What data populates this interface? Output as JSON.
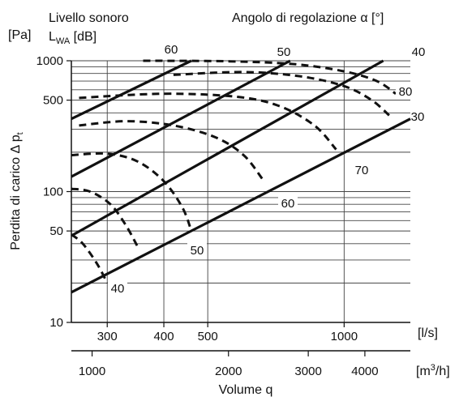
{
  "chart_data": {
    "type": "line",
    "x_scale": "log",
    "y_scale": "log",
    "xlim_ls": [
      250,
      1400
    ],
    "ylim": [
      10,
      1000
    ],
    "grid": true,
    "y_unit_label": "[Pa]",
    "y_axis_title": "Perdita di carico",
    "y_axis_symbol": "Δ p",
    "y_axis_symbol_sub": "t",
    "x_axis_title": "Volume q",
    "x_unit_ls": "[l/s]",
    "x_unit_m3h": "[m",
    "x_unit_m3h_sup": "3",
    "x_unit_m3h_end": "/h]",
    "top_left_label_line1": "Livello sonoro",
    "top_left_label_line2": "L",
    "top_left_label_sub": "WA",
    "top_left_label_end": " [dB]",
    "top_right_label": "Angolo di regolazione  α [°]",
    "y_ticks": [
      {
        "value": 10,
        "label": "10"
      },
      {
        "value": 50,
        "label": "50"
      },
      {
        "value": 100,
        "label": "100"
      },
      {
        "value": 500,
        "label": "500"
      },
      {
        "value": 1000,
        "label": "1000"
      }
    ],
    "x_ticks_ls": [
      {
        "value": 300,
        "label": "300"
      },
      {
        "value": 400,
        "label": "400"
      },
      {
        "value": 500,
        "label": "500"
      },
      {
        "value": 1000,
        "label": "1000"
      }
    ],
    "x_ticks_m3h": [
      {
        "value": 1000,
        "label": "1000"
      },
      {
        "value": 2000,
        "label": "2000"
      },
      {
        "value": 3000,
        "label": "3000"
      },
      {
        "value": 4000,
        "label": "4000"
      }
    ],
    "angle_series": [
      {
        "label": "60",
        "points": [
          [
            250,
            360
          ],
          [
            460,
            1000
          ]
        ]
      },
      {
        "label": "50",
        "points": [
          [
            250,
            130
          ],
          [
            760,
            1000
          ]
        ]
      },
      {
        "label": "40",
        "points": [
          [
            250,
            46
          ],
          [
            1220,
            1000
          ]
        ]
      },
      {
        "label": "30",
        "points": [
          [
            250,
            17
          ],
          [
            1400,
            360
          ]
        ]
      }
    ],
    "sound_series": [
      {
        "label": "80",
        "points": [
          [
            360,
            1000
          ],
          [
            560,
            990
          ],
          [
            780,
            940
          ],
          [
            1000,
            830
          ],
          [
            1180,
            700
          ],
          [
            1300,
            560
          ]
        ]
      },
      {
        "label": "70",
        "points": [
          [
            260,
            520
          ],
          [
            400,
            560
          ],
          [
            580,
            530
          ],
          [
            720,
            450
          ],
          [
            860,
            320
          ],
          [
            960,
            210
          ]
        ]
      },
      {
        "label": "60",
        "points": [
          [
            260,
            320
          ],
          [
            330,
            345
          ],
          [
            420,
            320
          ],
          [
            520,
            260
          ],
          [
            600,
            190
          ],
          [
            660,
            125
          ]
        ]
      },
      {
        "label": "50",
        "points": [
          [
            250,
            190
          ],
          [
            300,
            195
          ],
          [
            350,
            170
          ],
          [
            400,
            120
          ],
          [
            440,
            75
          ],
          [
            460,
            50
          ]
        ]
      },
      {
        "label": "40",
        "points": [
          [
            250,
            105
          ],
          [
            275,
            100
          ],
          [
            305,
            80
          ],
          [
            330,
            55
          ],
          [
            350,
            38
          ]
        ]
      },
      {
        "label": "",
        "points": [
          [
            250,
            47
          ],
          [
            265,
            40
          ],
          [
            285,
            28
          ],
          [
            300,
            20
          ]
        ]
      }
    ],
    "sound_curve_labels": [
      "80",
      "70",
      "60",
      "50",
      "40"
    ],
    "extra_sound_curves": [
      {
        "points": [
          [
            420,
            780
          ],
          [
            600,
            820
          ],
          [
            800,
            760
          ],
          [
            1000,
            640
          ],
          [
            1150,
            500
          ],
          [
            1260,
            380
          ]
        ]
      }
    ]
  }
}
